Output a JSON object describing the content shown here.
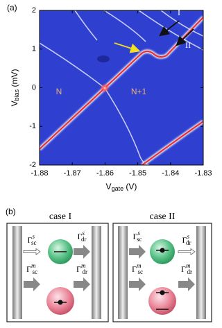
{
  "chart_data": {
    "type": "colormap",
    "panel_label": "(a)",
    "xlabel": {
      "main": "V",
      "sub": "gate",
      "unit": " (V)"
    },
    "ylabel": {
      "main": "V",
      "sub": "bias",
      "unit": " (mV)"
    },
    "xlim": [
      -1.88,
      -1.83
    ],
    "ylim": [
      -2,
      2
    ],
    "xticks": [
      -1.88,
      -1.87,
      -1.86,
      -1.85,
      -1.84,
      -1.83
    ],
    "yticks": [
      -2,
      -1,
      0,
      1,
      2
    ],
    "annotations": [
      "N",
      "N+1",
      "I",
      "II"
    ]
  },
  "panel_b": {
    "label": "(b)",
    "cases": [
      {
        "title": "case I",
        "rates": [
          {
            "symbol": "Γ",
            "sup": "s",
            "sub": "sc"
          },
          {
            "symbol": "Γ",
            "sup": "s",
            "sub": "dr"
          },
          {
            "symbol": "Γ",
            "sup": "m",
            "sub": "sc"
          },
          {
            "symbol": "Γ",
            "sup": "m",
            "sub": "dr"
          }
        ]
      },
      {
        "title": "case II",
        "rates": [
          {
            "symbol": "Γ",
            "sup": "s",
            "sub": "sc"
          },
          {
            "symbol": "Γ",
            "sup": "s",
            "sub": "dr"
          },
          {
            "symbol": "Γ",
            "sup": "m",
            "sub": "sc"
          },
          {
            "symbol": "Γ",
            "sup": "m",
            "sub": "dr"
          }
        ]
      }
    ]
  }
}
